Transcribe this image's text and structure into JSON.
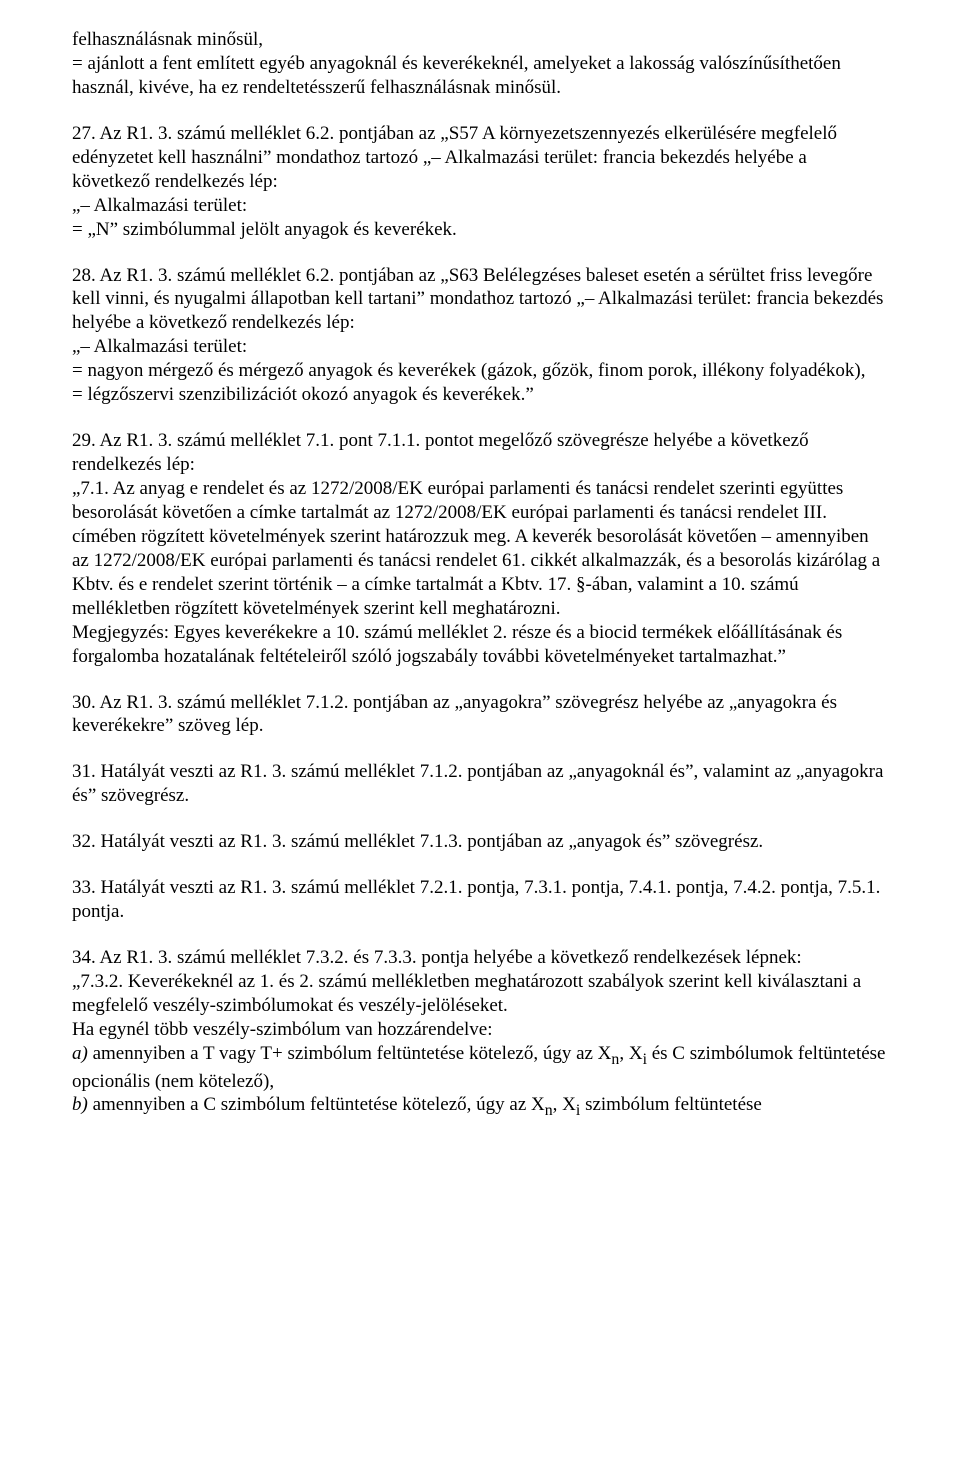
{
  "b0": {
    "l1": "felhasználásnak minősül,",
    "l2": "= ajánlott a fent említett egyéb anyagoknál és keverékeknél, amelyeket a lakosság valószínűsíthetően használ, kivéve, ha ez rendeltetésszerű felhasználásnak minősül."
  },
  "b1": {
    "l1": "27. Az R1. 3. számú melléklet 6.2. pontjában az „S57 A környezetszennyezés elkerülésére megfelelő edényzetet kell használni” mondathoz tartozó „– Alkalmazási terület: francia bekezdés helyébe a következő rendelkezés lép:",
    "l2": "„– Alkalmazási terület:",
    "l3": "= „N” szimbólummal jelölt anyagok és keverékek."
  },
  "b2": {
    "l1": "28. Az R1. 3. számú melléklet 6.2. pontjában az „S63 Belélegzéses baleset esetén a sérültet friss levegőre kell vinni, és nyugalmi állapotban kell tartani” mondathoz tartozó „– Alkalmazási terület: francia bekezdés helyébe a következő rendelkezés lép:",
    "l2": "„– Alkalmazási terület:",
    "l3": "= nagyon mérgező és mérgező anyagok és keverékek (gázok, gőzök, finom porok, illékony folyadékok),",
    "l4": "= légzőszervi szenzibilizációt okozó anyagok és keverékek.”"
  },
  "b3": {
    "l1": "29. Az R1. 3. számú melléklet 7.1. pont 7.1.1. pontot megelőző szövegrésze helyébe a következő rendelkezés lép:",
    "l2": "„7.1. Az anyag e rendelet és az 1272/2008/EK európai parlamenti és tanácsi rendelet szerinti együttes besorolását követően a címke tartalmát az 1272/2008/EK európai parlamenti és tanácsi rendelet III. címében rögzített követelmények szerint határozzuk meg. A keverék besorolását követően – amennyiben az 1272/2008/EK európai parlamenti és tanácsi rendelet 61. cikkét alkalmazzák, és a besorolás kizárólag a Kbtv. és e rendelet szerint történik – a címke tartalmát a Kbtv. 17. §-ában, valamint a 10. számú mellékletben rögzített követelmények szerint kell meghatározni.",
    "l3": "Megjegyzés: Egyes keverékekre a 10. számú melléklet 2. része és a biocid termékek előállításának és forgalomba hozatalának feltételeiről szóló jogszabály további követelményeket tartalmazhat.”"
  },
  "b4": {
    "l1": "30. Az R1. 3. számú melléklet 7.1.2. pontjában az „anyagokra” szövegrész helyébe az „anyagokra és keverékekre” szöveg lép."
  },
  "b5": {
    "l1": "31. Hatályát veszti az R1. 3. számú melléklet 7.1.2. pontjában az „anyagoknál és”, valamint az „anyagokra és” szövegrész."
  },
  "b6": {
    "l1": "32. Hatályát veszti az R1. 3. számú melléklet 7.1.3. pontjában az „anyagok és” szövegrész."
  },
  "b7": {
    "l1": "33. Hatályát veszti az R1. 3. számú melléklet 7.2.1. pontja, 7.3.1. pontja, 7.4.1. pontja, 7.4.2. pontja, 7.5.1. pontja."
  },
  "b8": {
    "l1": "34. Az R1. 3. számú melléklet 7.3.2. és 7.3.3. pontja helyébe a következő rendelkezések lépnek:",
    "l2": "„7.3.2. Keverékeknél az 1. és 2. számú mellékletben meghatározott szabályok szerint kell kiválasztani a megfelelő veszély-szimbólumokat és veszély-jelöléseket.",
    "l3": "Ha egynél több veszély-szimbólum van hozzárendelve:",
    "l4a": "a) ",
    "l4b": "amennyiben a T vagy T+ szimbólum feltüntetése kötelező, úgy az X",
    "l4c": ", X",
    "l4d": " és C szimbólumok feltüntetése opcionális (nem kötelező),",
    "l5a": "b) ",
    "l5b": "amennyiben a C szimbólum feltüntetése kötelező, úgy az X",
    "l5c": ", X",
    "l5d": " szimbólum feltüntetése",
    "sub_n": "n",
    "sub_i": "i"
  }
}
